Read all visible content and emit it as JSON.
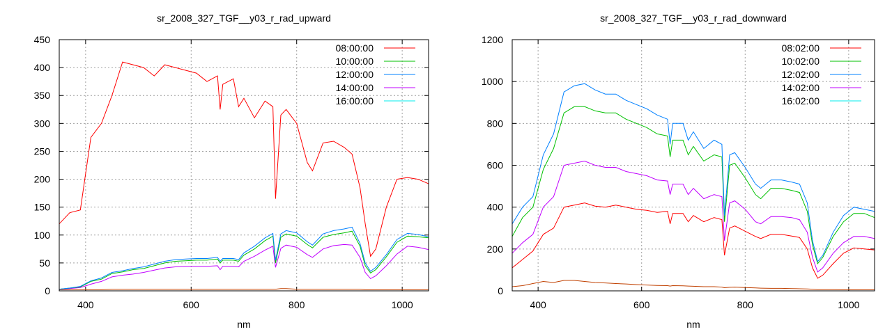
{
  "chart_data": [
    {
      "type": "line",
      "title": "sr_2008_327_TGF__y03_r_rad_upward",
      "xlabel": "nm",
      "ylabel": "",
      "xlim": [
        350,
        1050
      ],
      "ylim": [
        0,
        450
      ],
      "xticks": [
        400,
        600,
        800,
        1000
      ],
      "yticks": [
        0,
        50,
        100,
        150,
        200,
        250,
        300,
        350,
        400,
        450
      ],
      "grid": true,
      "legend": "top-right",
      "x": [
        350,
        370,
        390,
        410,
        430,
        450,
        470,
        490,
        510,
        530,
        550,
        570,
        590,
        610,
        630,
        650,
        655,
        660,
        680,
        690,
        700,
        720,
        740,
        755,
        760,
        770,
        780,
        800,
        820,
        830,
        850,
        870,
        890,
        905,
        920,
        930,
        940,
        950,
        970,
        990,
        1010,
        1030,
        1050
      ],
      "series": [
        {
          "name": "08:00:00",
          "color": "#ff0000",
          "values": [
            120,
            140,
            145,
            275,
            300,
            350,
            410,
            405,
            400,
            385,
            405,
            400,
            395,
            390,
            375,
            385,
            325,
            370,
            380,
            330,
            345,
            310,
            340,
            330,
            165,
            315,
            325,
            300,
            230,
            215,
            265,
            268,
            257,
            245,
            185,
            120,
            62,
            75,
            150,
            200,
            203,
            200,
            192
          ]
        },
        {
          "name": "10:00:00",
          "color": "#00c000",
          "values": [
            3,
            5,
            7,
            17,
            21,
            31,
            34,
            38,
            40,
            45,
            50,
            53,
            54,
            55,
            55,
            57,
            50,
            55,
            55,
            53,
            64,
            75,
            90,
            98,
            50,
            96,
            102,
            98,
            83,
            77,
            96,
            101,
            104,
            107,
            80,
            45,
            32,
            38,
            61,
            87,
            98,
            97,
            95
          ]
        },
        {
          "name": "12:00:00",
          "color": "#0080ff",
          "values": [
            3,
            5,
            8,
            18,
            23,
            33,
            36,
            40,
            43,
            48,
            53,
            56,
            57,
            58,
            58,
            60,
            53,
            58,
            58,
            56,
            68,
            80,
            95,
            103,
            55,
            102,
            108,
            104,
            88,
            82,
            102,
            108,
            111,
            114,
            85,
            50,
            35,
            42,
            65,
            92,
            103,
            101,
            97
          ]
        },
        {
          "name": "14:00:00",
          "color": "#c000ff",
          "values": [
            3,
            4,
            6,
            12,
            17,
            25,
            28,
            30,
            33,
            37,
            41,
            43,
            44,
            44,
            44,
            45,
            38,
            44,
            44,
            43,
            53,
            62,
            73,
            80,
            42,
            76,
            82,
            78,
            65,
            60,
            75,
            81,
            83,
            82,
            60,
            33,
            22,
            27,
            45,
            66,
            80,
            78,
            74
          ]
        },
        {
          "name": "16:00:00",
          "color": "#00eeee",
          "line_color": "#c04000",
          "values": [
            2,
            2,
            2,
            2,
            2,
            3,
            3,
            3,
            3,
            3,
            3,
            3,
            3,
            3,
            3,
            3,
            3,
            3,
            3,
            3,
            3,
            3,
            3,
            3,
            3,
            4,
            4,
            3,
            3,
            3,
            3,
            3,
            3,
            3,
            3,
            2,
            2,
            2,
            2,
            2,
            2,
            2,
            2
          ]
        }
      ]
    },
    {
      "type": "line",
      "title": "sr_2008_327_TGF__y03_r_rad_downward",
      "xlabel": "nm",
      "ylabel": "",
      "xlim": [
        350,
        1050
      ],
      "ylim": [
        0,
        1200
      ],
      "xticks": [
        400,
        600,
        800,
        1000
      ],
      "yticks": [
        0,
        200,
        400,
        600,
        800,
        1000,
        1200
      ],
      "grid": true,
      "legend": "top-right",
      "x": [
        350,
        370,
        390,
        410,
        430,
        450,
        470,
        490,
        510,
        530,
        550,
        570,
        590,
        610,
        630,
        650,
        655,
        660,
        680,
        690,
        700,
        720,
        740,
        755,
        760,
        770,
        780,
        800,
        820,
        830,
        850,
        870,
        890,
        905,
        920,
        930,
        940,
        950,
        970,
        990,
        1010,
        1030,
        1050
      ],
      "series": [
        {
          "name": "08:02:00",
          "color": "#ff0000",
          "values": [
            110,
            150,
            190,
            270,
            300,
            400,
            410,
            420,
            405,
            400,
            410,
            400,
            390,
            385,
            375,
            380,
            320,
            370,
            370,
            330,
            360,
            330,
            350,
            340,
            170,
            300,
            310,
            285,
            260,
            250,
            270,
            270,
            262,
            255,
            200,
            110,
            60,
            75,
            130,
            180,
            205,
            200,
            195
          ]
        },
        {
          "name": "10:02:00",
          "color": "#00c000",
          "values": [
            260,
            350,
            400,
            580,
            680,
            850,
            880,
            880,
            860,
            850,
            850,
            820,
            800,
            780,
            750,
            740,
            640,
            720,
            720,
            650,
            690,
            620,
            650,
            640,
            330,
            600,
            610,
            540,
            460,
            440,
            490,
            490,
            480,
            470,
            380,
            220,
            130,
            160,
            260,
            330,
            370,
            370,
            350
          ]
        },
        {
          "name": "12:02:00",
          "color": "#0080ff",
          "values": [
            320,
            400,
            450,
            650,
            750,
            950,
            980,
            990,
            960,
            940,
            940,
            910,
            890,
            870,
            840,
            820,
            700,
            800,
            800,
            720,
            760,
            680,
            720,
            700,
            360,
            650,
            660,
            590,
            510,
            490,
            530,
            530,
            520,
            510,
            420,
            240,
            140,
            170,
            280,
            360,
            400,
            390,
            380
          ]
        },
        {
          "name": "14:02:00",
          "color": "#c000ff",
          "values": [
            180,
            230,
            270,
            400,
            450,
            600,
            610,
            620,
            600,
            590,
            590,
            570,
            560,
            550,
            530,
            525,
            460,
            510,
            510,
            460,
            490,
            440,
            460,
            450,
            240,
            420,
            430,
            390,
            330,
            320,
            355,
            355,
            350,
            340,
            280,
            160,
            90,
            110,
            180,
            230,
            260,
            260,
            250
          ]
        },
        {
          "name": "16:02:00",
          "color": "#00eeee",
          "line_color": "#c04000",
          "values": [
            20,
            25,
            35,
            45,
            40,
            50,
            50,
            45,
            40,
            38,
            35,
            33,
            30,
            28,
            26,
            25,
            23,
            25,
            24,
            23,
            22,
            20,
            20,
            18,
            15,
            17,
            18,
            16,
            14,
            13,
            12,
            12,
            11,
            10,
            9,
            8,
            6,
            6,
            6,
            5,
            5,
            5,
            5
          ]
        }
      ]
    }
  ]
}
